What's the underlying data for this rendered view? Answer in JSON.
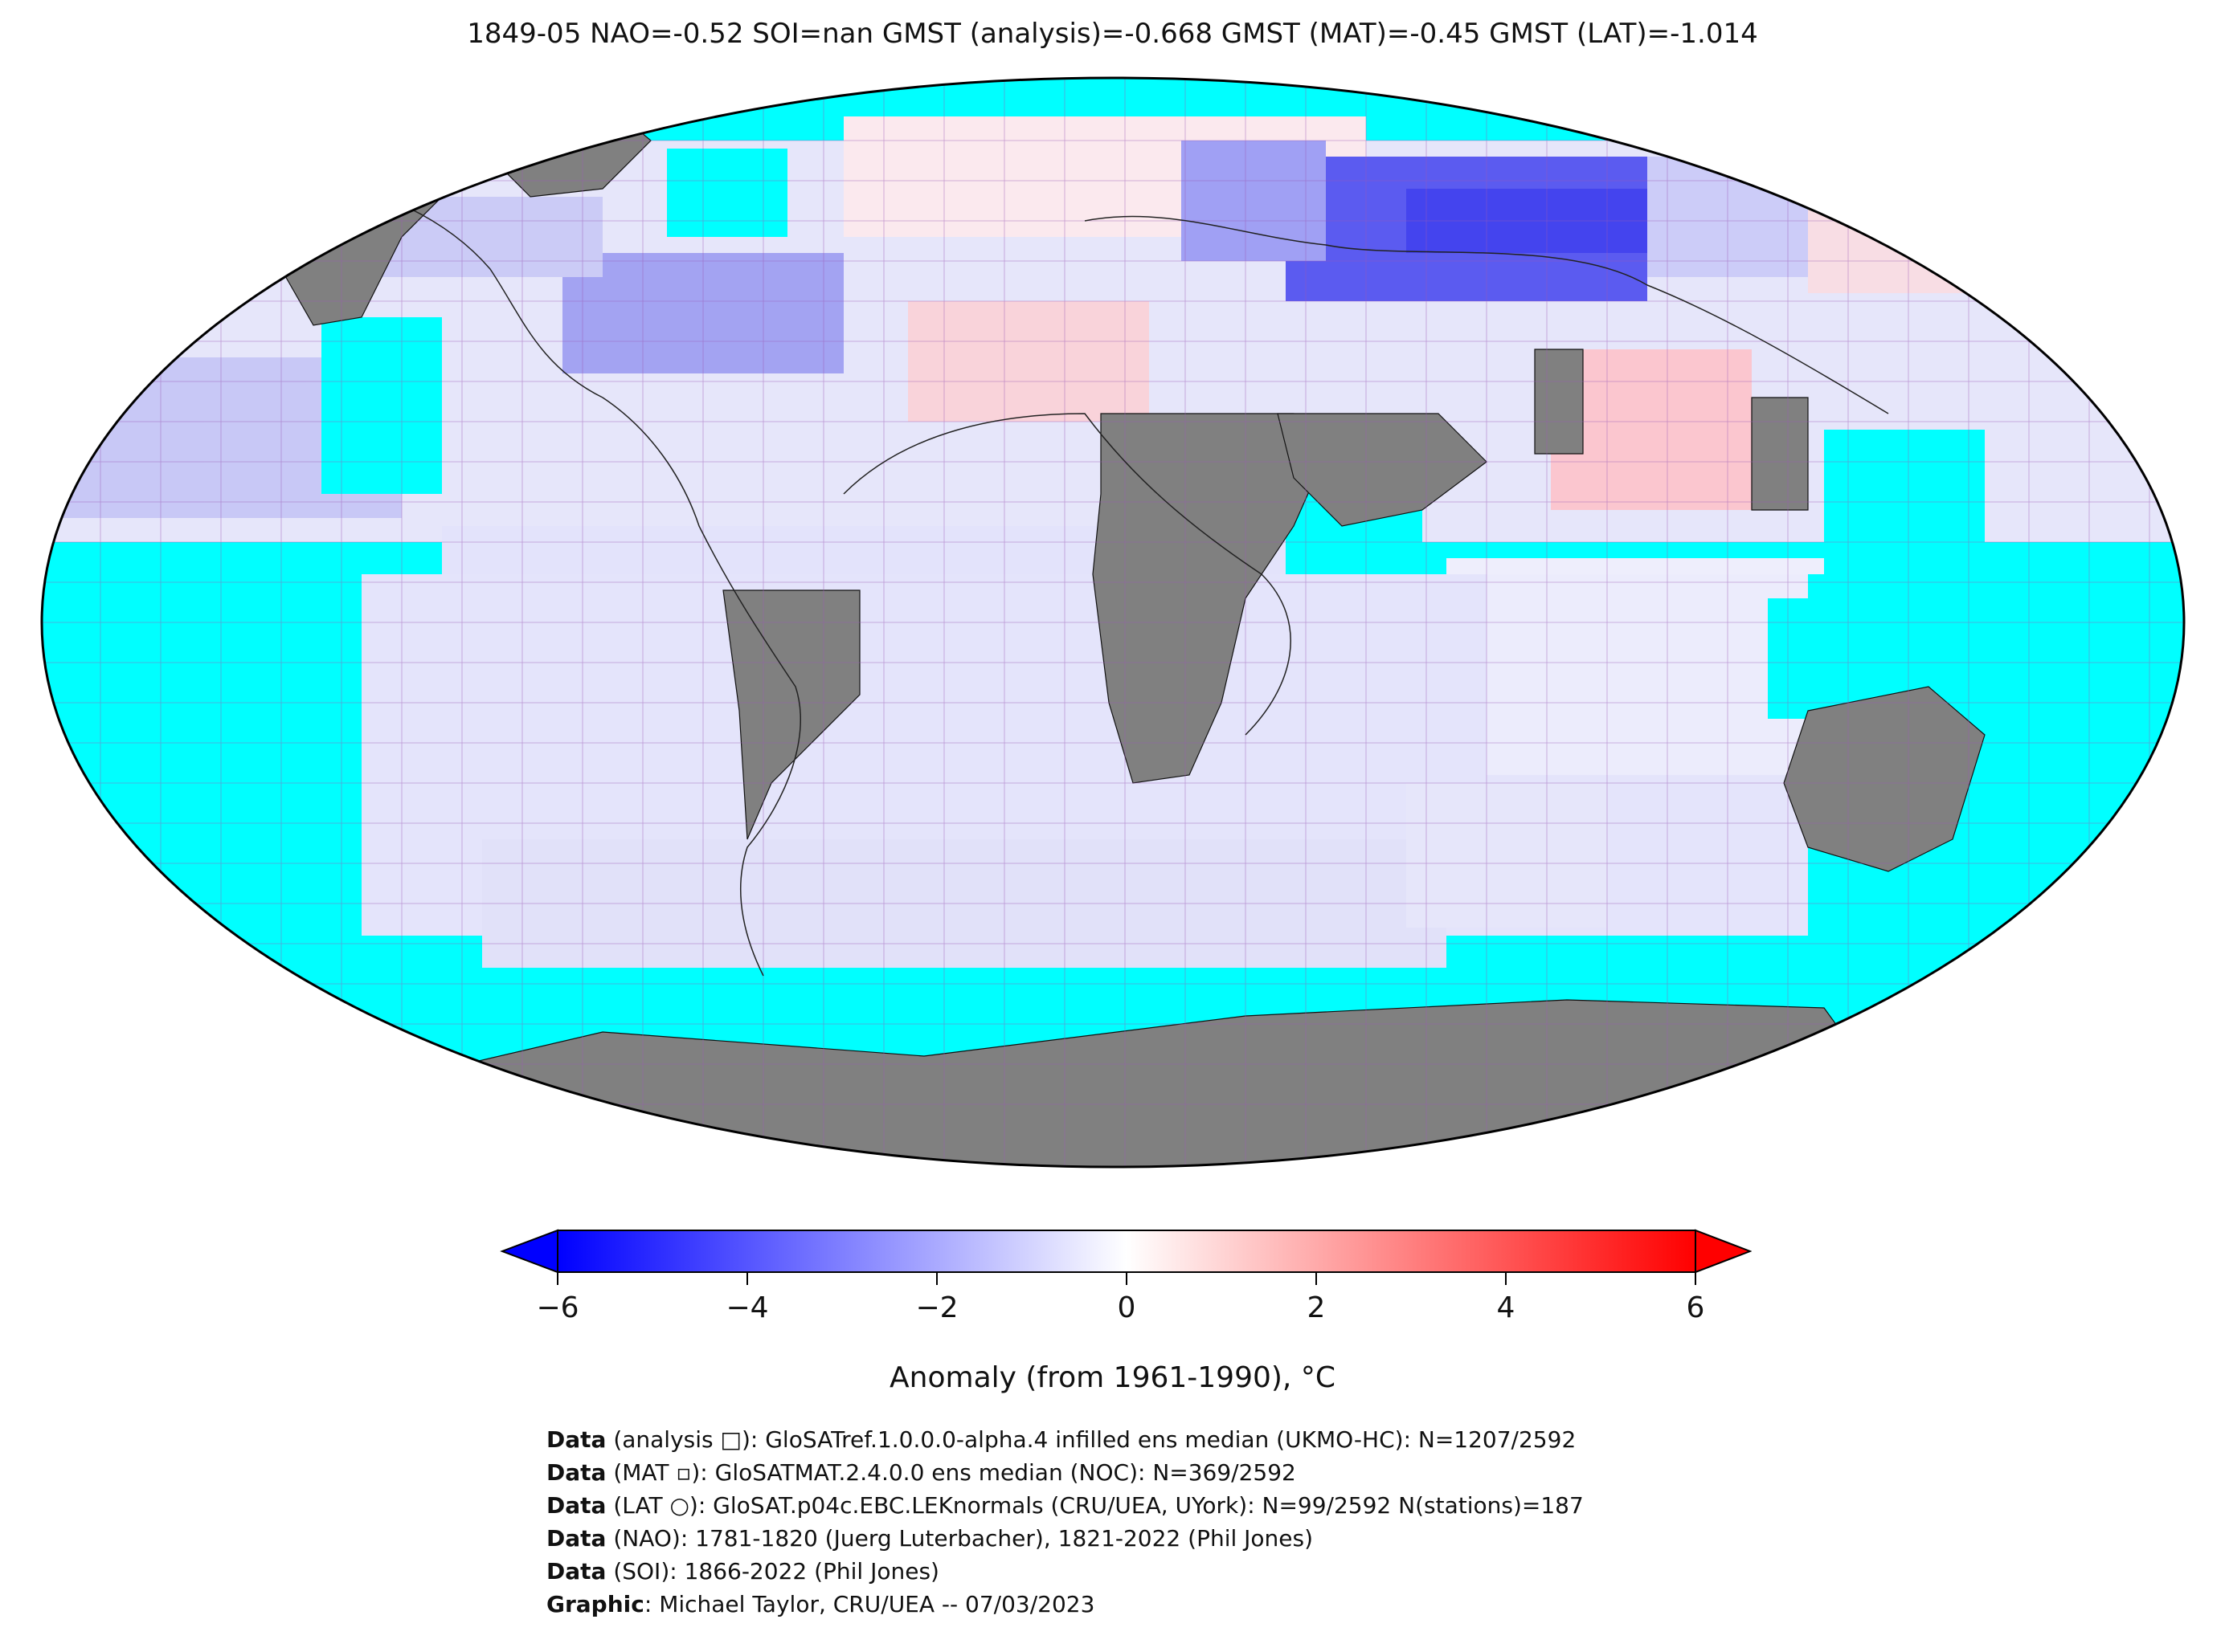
{
  "title": "1849-05 NAO=-0.52 SOI=nan GMST (analysis)=-0.668 GMST (MAT)=-0.45 GMST (LAT)=-1.014",
  "colorbar": {
    "label": "Anomaly (from 1961-1990), °C",
    "ticks": [
      "−6",
      "−4",
      "−2",
      "0",
      "2",
      "4",
      "6"
    ],
    "tick_values": [
      -6,
      -4,
      -2,
      0,
      2,
      4,
      6
    ],
    "range": [
      -6,
      6
    ],
    "colors": {
      "min": "#0000ff",
      "mid": "#ffffff",
      "max": "#ff0000"
    }
  },
  "map": {
    "projection": "Robinson",
    "colors": {
      "ocean_no_data": "#00ffff",
      "land_no_data": "#808080",
      "grid": "#9b59b6",
      "outline": "#000000"
    }
  },
  "credits": [
    {
      "bold": "Data",
      "text": " (analysis □): GloSATref.1.0.0.0-alpha.4 infilled ens median (UKMO-HC): N=1207/2592"
    },
    {
      "bold": "Data",
      "text": " (MAT ▫): GloSATMAT.2.4.0.0 ens median (NOC): N=369/2592"
    },
    {
      "bold": "Data",
      "text": " (LAT ○): GloSAT.p04c.EBC.LEKnormals (CRU/UEA, UYork): N=99/2592 N(stations)=187"
    },
    {
      "bold": "Data",
      "text": " (NAO): 1781-1820 (Juerg Luterbacher), 1821-2022 (Phil Jones)"
    },
    {
      "bold": "Data",
      "text": " (SOI): 1866-2022 (Phil Jones)"
    },
    {
      "bold": "Graphic",
      "text": ": Michael Taylor, CRU/UEA -- 07/03/2023"
    }
  ]
}
